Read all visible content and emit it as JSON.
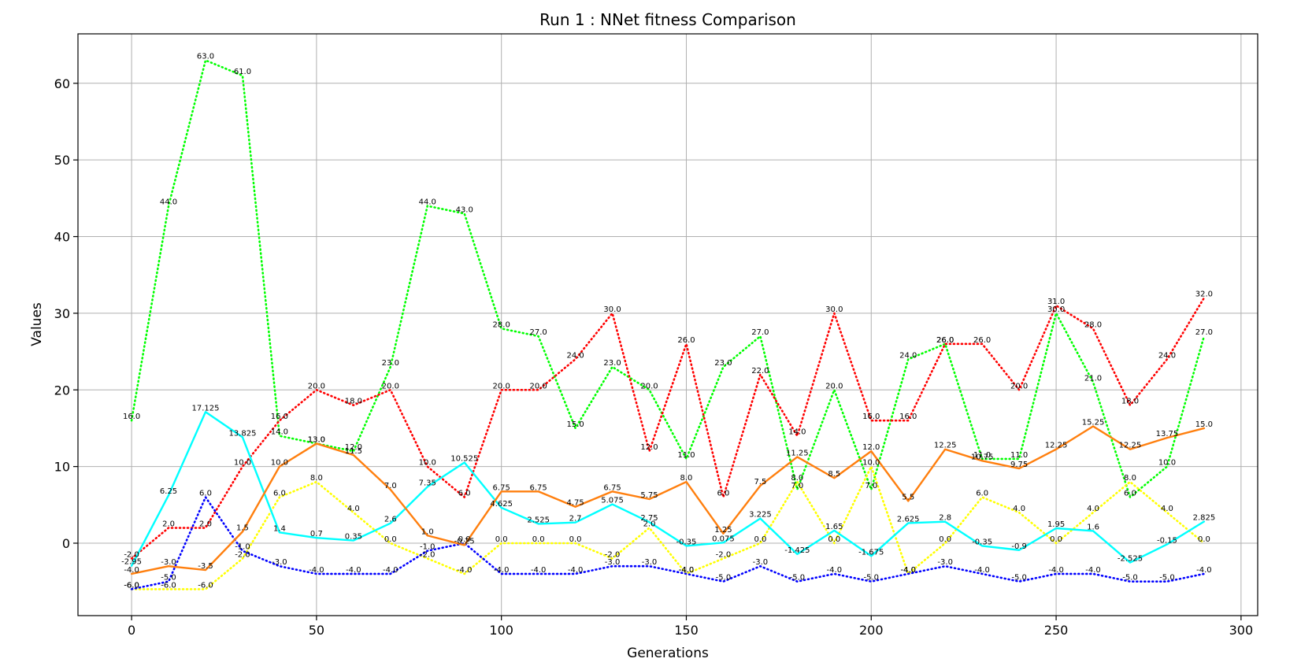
{
  "chart_data": {
    "type": "line",
    "title": "Run 1 : NNet fitness Comparison",
    "xlabel": "Generations",
    "ylabel": "Values",
    "xlim": [
      -14.5,
      304.5
    ],
    "ylim": [
      -9.45,
      66.45
    ],
    "xticks": [
      0,
      50,
      100,
      150,
      200,
      250,
      300
    ],
    "yticks": [
      0,
      10,
      20,
      30,
      40,
      50,
      60
    ],
    "grid": true,
    "legend": "none",
    "x": [
      0,
      10,
      20,
      30,
      40,
      50,
      60,
      70,
      80,
      90,
      100,
      110,
      120,
      130,
      140,
      150,
      160,
      170,
      180,
      190,
      200,
      210,
      220,
      230,
      240,
      250,
      260,
      270,
      280,
      290
    ],
    "series": [
      {
        "color": "#00ff00",
        "style": "dotted",
        "values": [
          16.0,
          44.0,
          63.0,
          61.0,
          14.0,
          13.0,
          12.0,
          23.0,
          44.0,
          43.0,
          28.0,
          27.0,
          15.0,
          23.0,
          20.0,
          11.0,
          23.0,
          27.0,
          7.0,
          20.0,
          7.0,
          24.0,
          26.0,
          11.0,
          11.0,
          30.0,
          21.0,
          6.0,
          10.0,
          27.0
        ]
      },
      {
        "color": "#ff0000",
        "style": "dotted",
        "values": [
          -2.0,
          2.0,
          2.0,
          10.0,
          16.0,
          20.0,
          18.0,
          20.0,
          10.0,
          6.0,
          20.0,
          20.0,
          24.0,
          30.0,
          12.0,
          26.0,
          6.0,
          22.0,
          14.0,
          30.0,
          16.0,
          16.0,
          26.0,
          26.0,
          20.0,
          31.0,
          28.0,
          18.0,
          24.0,
          32.0
        ]
      },
      {
        "color": "#ffff00",
        "style": "dotted",
        "values": [
          -6.0,
          -6.0,
          -6.0,
          -2.0,
          6.0,
          8.0,
          4.0,
          0.0,
          -2.0,
          -4.0,
          0.0,
          0.0,
          0.0,
          -2.0,
          2.0,
          -4.0,
          -2.0,
          0.0,
          8.0,
          0.0,
          10.0,
          -4.0,
          0.0,
          6.0,
          4.0,
          0.0,
          4.0,
          8.0,
          4.0,
          0.0
        ]
      },
      {
        "color": "#0000ff",
        "style": "dotted",
        "values": [
          -6.0,
          -5.0,
          6.0,
          -1.0,
          -3.0,
          -4.0,
          -4.0,
          -4.0,
          -1.0,
          0.0,
          -4.0,
          -4.0,
          -4.0,
          -3.0,
          -3.0,
          -4.0,
          -5.0,
          -3.0,
          -5.0,
          -4.0,
          -5.0,
          -4.0,
          -3.0,
          -4.0,
          -5.0,
          -4.0,
          -4.0,
          -5.0,
          -5.0,
          -4.0
        ]
      },
      {
        "color": "#00ffff",
        "style": "solid",
        "values": [
          -2.95,
          6.25,
          17.125,
          13.825,
          1.4,
          0.7,
          0.35,
          2.6,
          7.35,
          10.525,
          4.625,
          2.525,
          2.7,
          5.075,
          2.75,
          -0.35,
          0.075,
          3.225,
          -1.425,
          1.65,
          -1.675,
          2.625,
          2.8,
          -0.35,
          -0.9,
          1.95,
          1.6,
          -2.525,
          -0.15,
          2.825
        ]
      },
      {
        "color": "#ff7f0e",
        "style": "solid",
        "values": [
          -4.0,
          -3.0,
          -3.5,
          1.5,
          10.0,
          13.0,
          11.5,
          7.0,
          1.0,
          -0.25,
          6.75,
          6.75,
          4.75,
          6.75,
          5.75,
          8.0,
          1.25,
          7.5,
          11.25,
          8.5,
          12.0,
          5.5,
          12.25,
          10.75,
          9.75,
          12.25,
          15.25,
          12.25,
          13.75,
          15.0
        ]
      }
    ]
  }
}
